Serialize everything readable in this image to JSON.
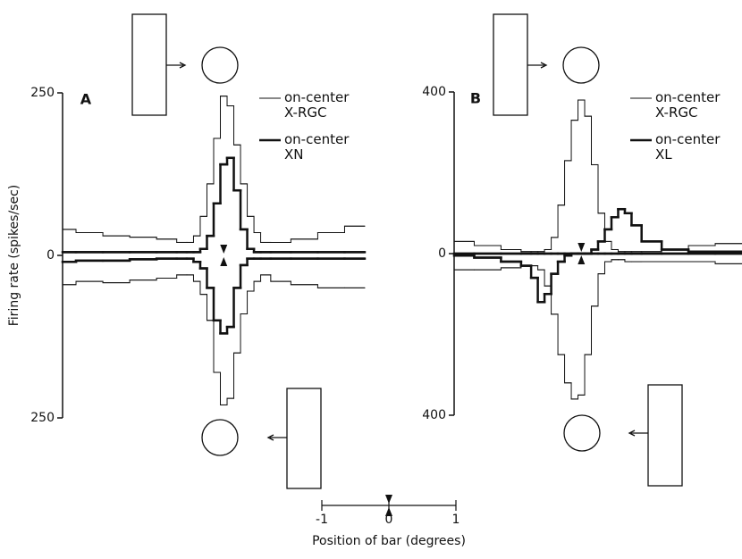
{
  "chart_data": [
    {
      "type": "line",
      "title": "A",
      "y_label": "Firing rate (spikes/sec)",
      "x": [
        -2.4,
        -2.0,
        -1.6,
        -1.2,
        -0.8,
        -0.6,
        -0.5,
        -0.4,
        -0.3,
        -0.2,
        -0.1,
        0,
        0.1,
        0.2,
        0.3,
        0.4,
        0.5,
        0.6,
        0.8,
        1.2,
        1.6,
        2.0
      ],
      "xlim": [
        -2.4,
        2.1
      ],
      "ylim": [
        -250,
        250
      ],
      "yticks": [
        250,
        0,
        {
          "value": -250,
          "label": "250"
        }
      ],
      "series": [
        {
          "name": "on-center X-RGC",
          "color": "#111111",
          "line_width": 1,
          "values": [
            40,
            35,
            30,
            28,
            25,
            20,
            20,
            30,
            60,
            110,
            180,
            245,
            230,
            170,
            110,
            60,
            35,
            20,
            20,
            25,
            35,
            45
          ],
          "reverse_values": [
            -45,
            -40,
            -42,
            -38,
            -35,
            -30,
            -30,
            -40,
            -60,
            -100,
            -180,
            -230,
            -220,
            -150,
            -90,
            -55,
            -40,
            -30,
            -40,
            -45,
            -50,
            -50
          ]
        },
        {
          "name": "on-center XN",
          "color": "#111111",
          "line_width": 2.5,
          "values": [
            5,
            5,
            5,
            5,
            5,
            5,
            5,
            5,
            10,
            30,
            80,
            140,
            150,
            100,
            40,
            10,
            5,
            5,
            5,
            5,
            5,
            5
          ],
          "reverse_values": [
            -10,
            -8,
            -8,
            -6,
            -5,
            -5,
            -5,
            -10,
            -20,
            -50,
            -100,
            -120,
            -110,
            -50,
            -15,
            -5,
            -5,
            -5,
            -5,
            -5,
            -5,
            -5
          ]
        }
      ]
    },
    {
      "type": "line",
      "title": "B",
      "x": [
        -1.8,
        -1.4,
        -1.0,
        -0.8,
        -0.7,
        -0.6,
        -0.5,
        -0.4,
        -0.3,
        -0.2,
        -0.1,
        0,
        0.1,
        0.2,
        0.3,
        0.4,
        0.5,
        0.6,
        0.7,
        0.8,
        1.0,
        1.4,
        1.8,
        2.2
      ],
      "xlim": [
        -1.9,
        2.4
      ],
      "ylim": [
        -400,
        400
      ],
      "yticks": [
        400,
        0,
        {
          "value": -400,
          "label": "400"
        }
      ],
      "series": [
        {
          "name": "on-center X-RGC",
          "color": "#111111",
          "line_width": 1,
          "values": [
            30,
            20,
            10,
            5,
            5,
            5,
            10,
            40,
            120,
            230,
            330,
            380,
            340,
            220,
            100,
            30,
            10,
            5,
            5,
            5,
            5,
            10,
            20,
            25
          ],
          "reverse_values": [
            -40,
            -40,
            -35,
            -30,
            -30,
            -40,
            -80,
            -150,
            -250,
            -320,
            -360,
            -350,
            -250,
            -130,
            -50,
            -20,
            -15,
            -15,
            -20,
            -20,
            -20,
            -20,
            -20,
            -25
          ]
        },
        {
          "name": "on-center XL",
          "color": "#111111",
          "line_width": 2.5,
          "values": [
            0,
            0,
            0,
            0,
            0,
            0,
            0,
            0,
            0,
            0,
            0,
            0,
            0,
            10,
            30,
            60,
            90,
            110,
            100,
            70,
            30,
            10,
            5,
            5
          ],
          "reverse_values": [
            -5,
            -10,
            -20,
            -30,
            -60,
            -120,
            -100,
            -50,
            -20,
            -5,
            0,
            0,
            0,
            0,
            0,
            0,
            0,
            0,
            0,
            0,
            0,
            0,
            0,
            0
          ]
        }
      ]
    }
  ],
  "scale_bar": {
    "ticks": [
      -1,
      0,
      1
    ],
    "label": "Position of bar (degrees)"
  }
}
